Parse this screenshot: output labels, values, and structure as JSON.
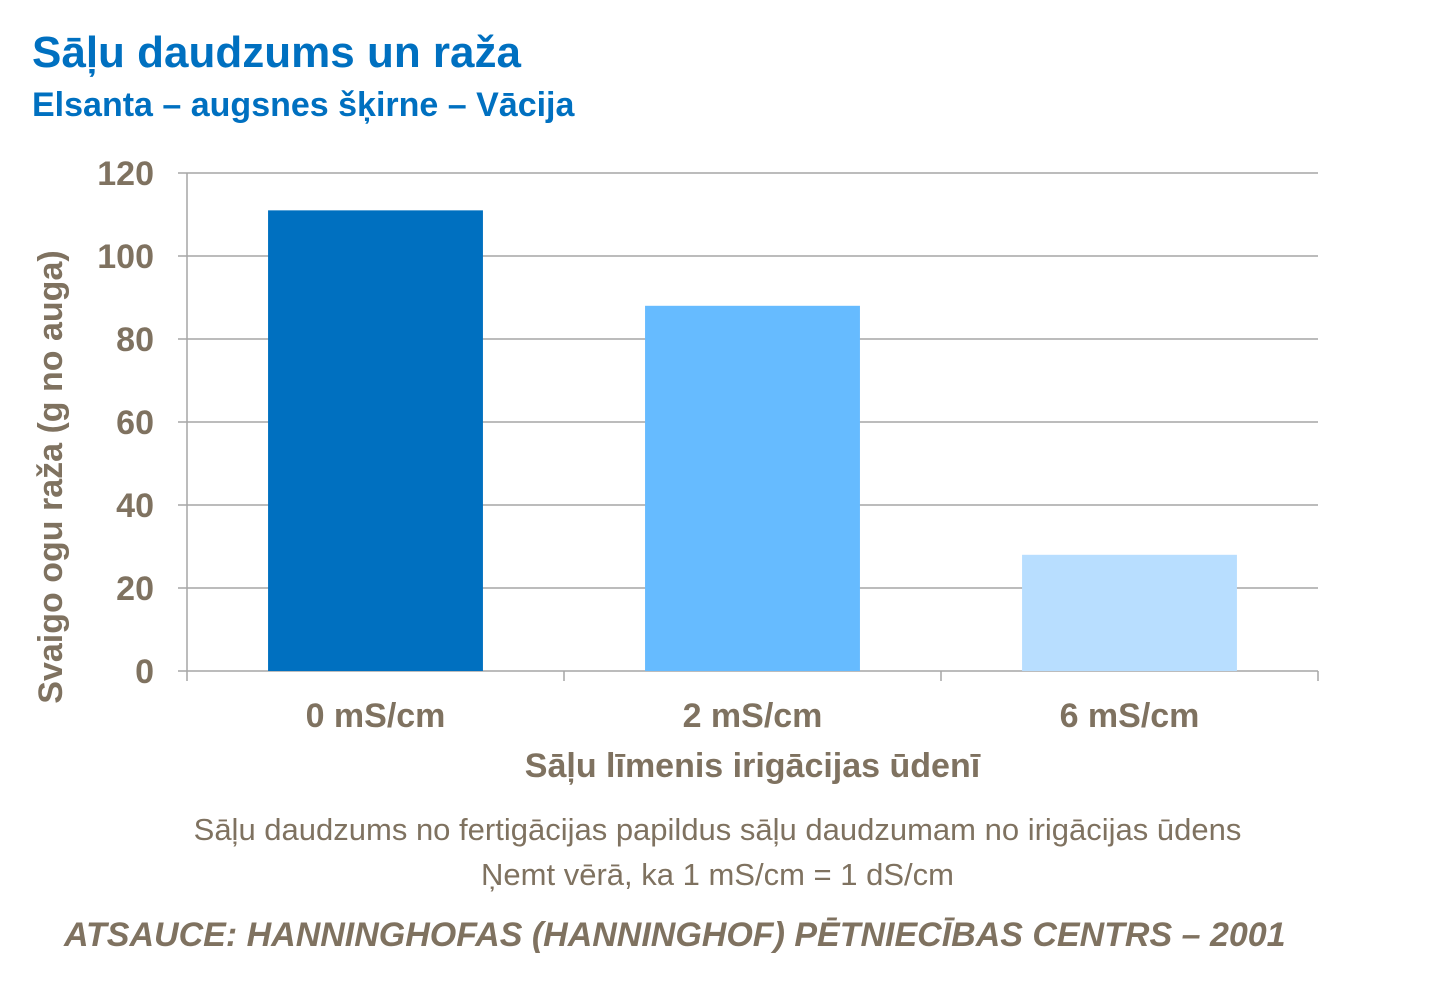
{
  "header": {
    "title": "Sāļu daudzums un raža",
    "subtitle": "Elsanta – augsnes šķirne – Vācija"
  },
  "chart_data": {
    "type": "bar",
    "categories": [
      "0 mS/cm",
      "2 mS/cm",
      "6 mS/cm"
    ],
    "values": [
      111,
      88,
      28
    ],
    "colors": [
      "#0070C0",
      "#66BBFF",
      "#B8DEFF"
    ],
    "xlabel": "Sāļu līmenis irigācijas ūdenī",
    "ylabel": "Svaigo ogu raža (g no auga)",
    "ylim": [
      0,
      120
    ],
    "yticks": [
      0,
      20,
      40,
      60,
      80,
      100,
      120
    ],
    "grid": true,
    "grid_color": "#A6A6A6",
    "text_color": "#7F7260"
  },
  "notes": {
    "line1": "Sāļu daudzums no fertigācijas papildus sāļu daudzumam no irigācijas ūdens",
    "line2": "Ņemt vērā, ka 1 mS/cm = 1 dS/cm"
  },
  "source": "ATSAUCE: HANNINGHOFAS (HANNINGHOF) PĒTNIECĪBAS CENTRS – 2001"
}
